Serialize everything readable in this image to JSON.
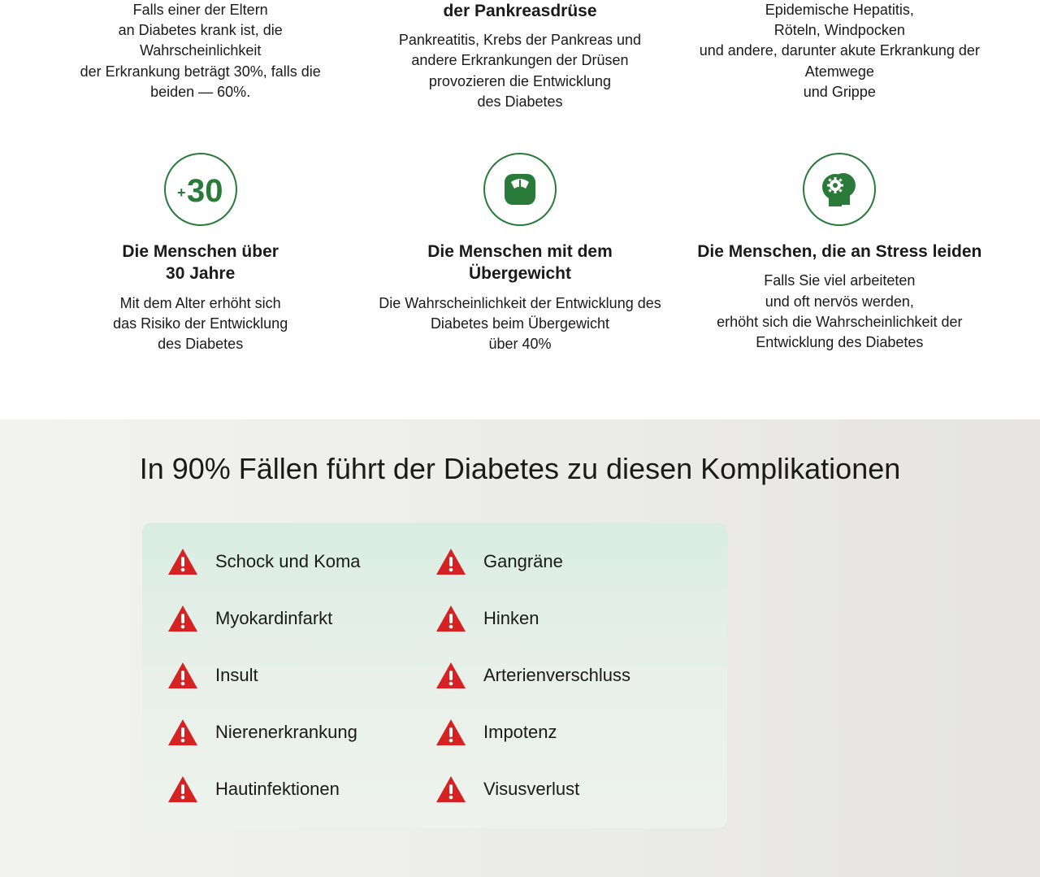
{
  "colors": {
    "icon_green": "#2a7a3a",
    "circle_border": "#2a7a3a",
    "warn_red": "#d62222",
    "text_dark": "#1a1a1a",
    "section2_bg_start": "#f2f2f0",
    "section2_bg_end": "#e5e4e2",
    "box_bg_top": "#d9ede2",
    "box_bg_bottom": "#eef2ed"
  },
  "row1": {
    "left": {
      "desc": "Falls einer der Eltern\nan Diabetes krank ist, die Wahrscheinlichkeit\nder Erkrankung beträgt 30%, falls die beiden — 60%."
    },
    "center": {
      "title_tail": "der Pankreasdrüse",
      "desc": "Pankreatitis, Krebs der Pankreas und andere Erkrankungen der Drüsen provozieren die Entwicklung\ndes Diabetes"
    },
    "right": {
      "desc": "Epidemische Hepatitis,\nRöteln, Windpocken\nund andere, darunter akute Erkrankung der Atemwege\nund Grippe"
    }
  },
  "row2": {
    "left": {
      "title": "Die Menschen über\n30 Jahre",
      "desc": "Mit dem Alter erhöht sich\ndas Risiko der Entwicklung\ndes Diabetes"
    },
    "center": {
      "title": "Die Menschen mit dem Übergewicht",
      "desc": "Die Wahrscheinlichkeit der Entwicklung des Diabetes beim Übergewicht\nüber 40%"
    },
    "right": {
      "title": "Die Menschen, die an Stress leiden",
      "desc": "Falls Sie viel arbeiteten\nund oft nervös werden,\nerhöht sich die Wahrscheinlichkeit der Entwicklung des Diabetes"
    }
  },
  "section2": {
    "title": "In 90% Fällen führt der Diabetes zu diesen Komplikationen",
    "col1": [
      "Schock und Koma",
      "Myokardinfarkt",
      "Insult",
      "Nierenerkrankung",
      "Hautinfektionen"
    ],
    "col2": [
      "Gangräne",
      "Hinken",
      "Arterienverschluss",
      "Impotenz",
      "Visusverlust"
    ]
  }
}
